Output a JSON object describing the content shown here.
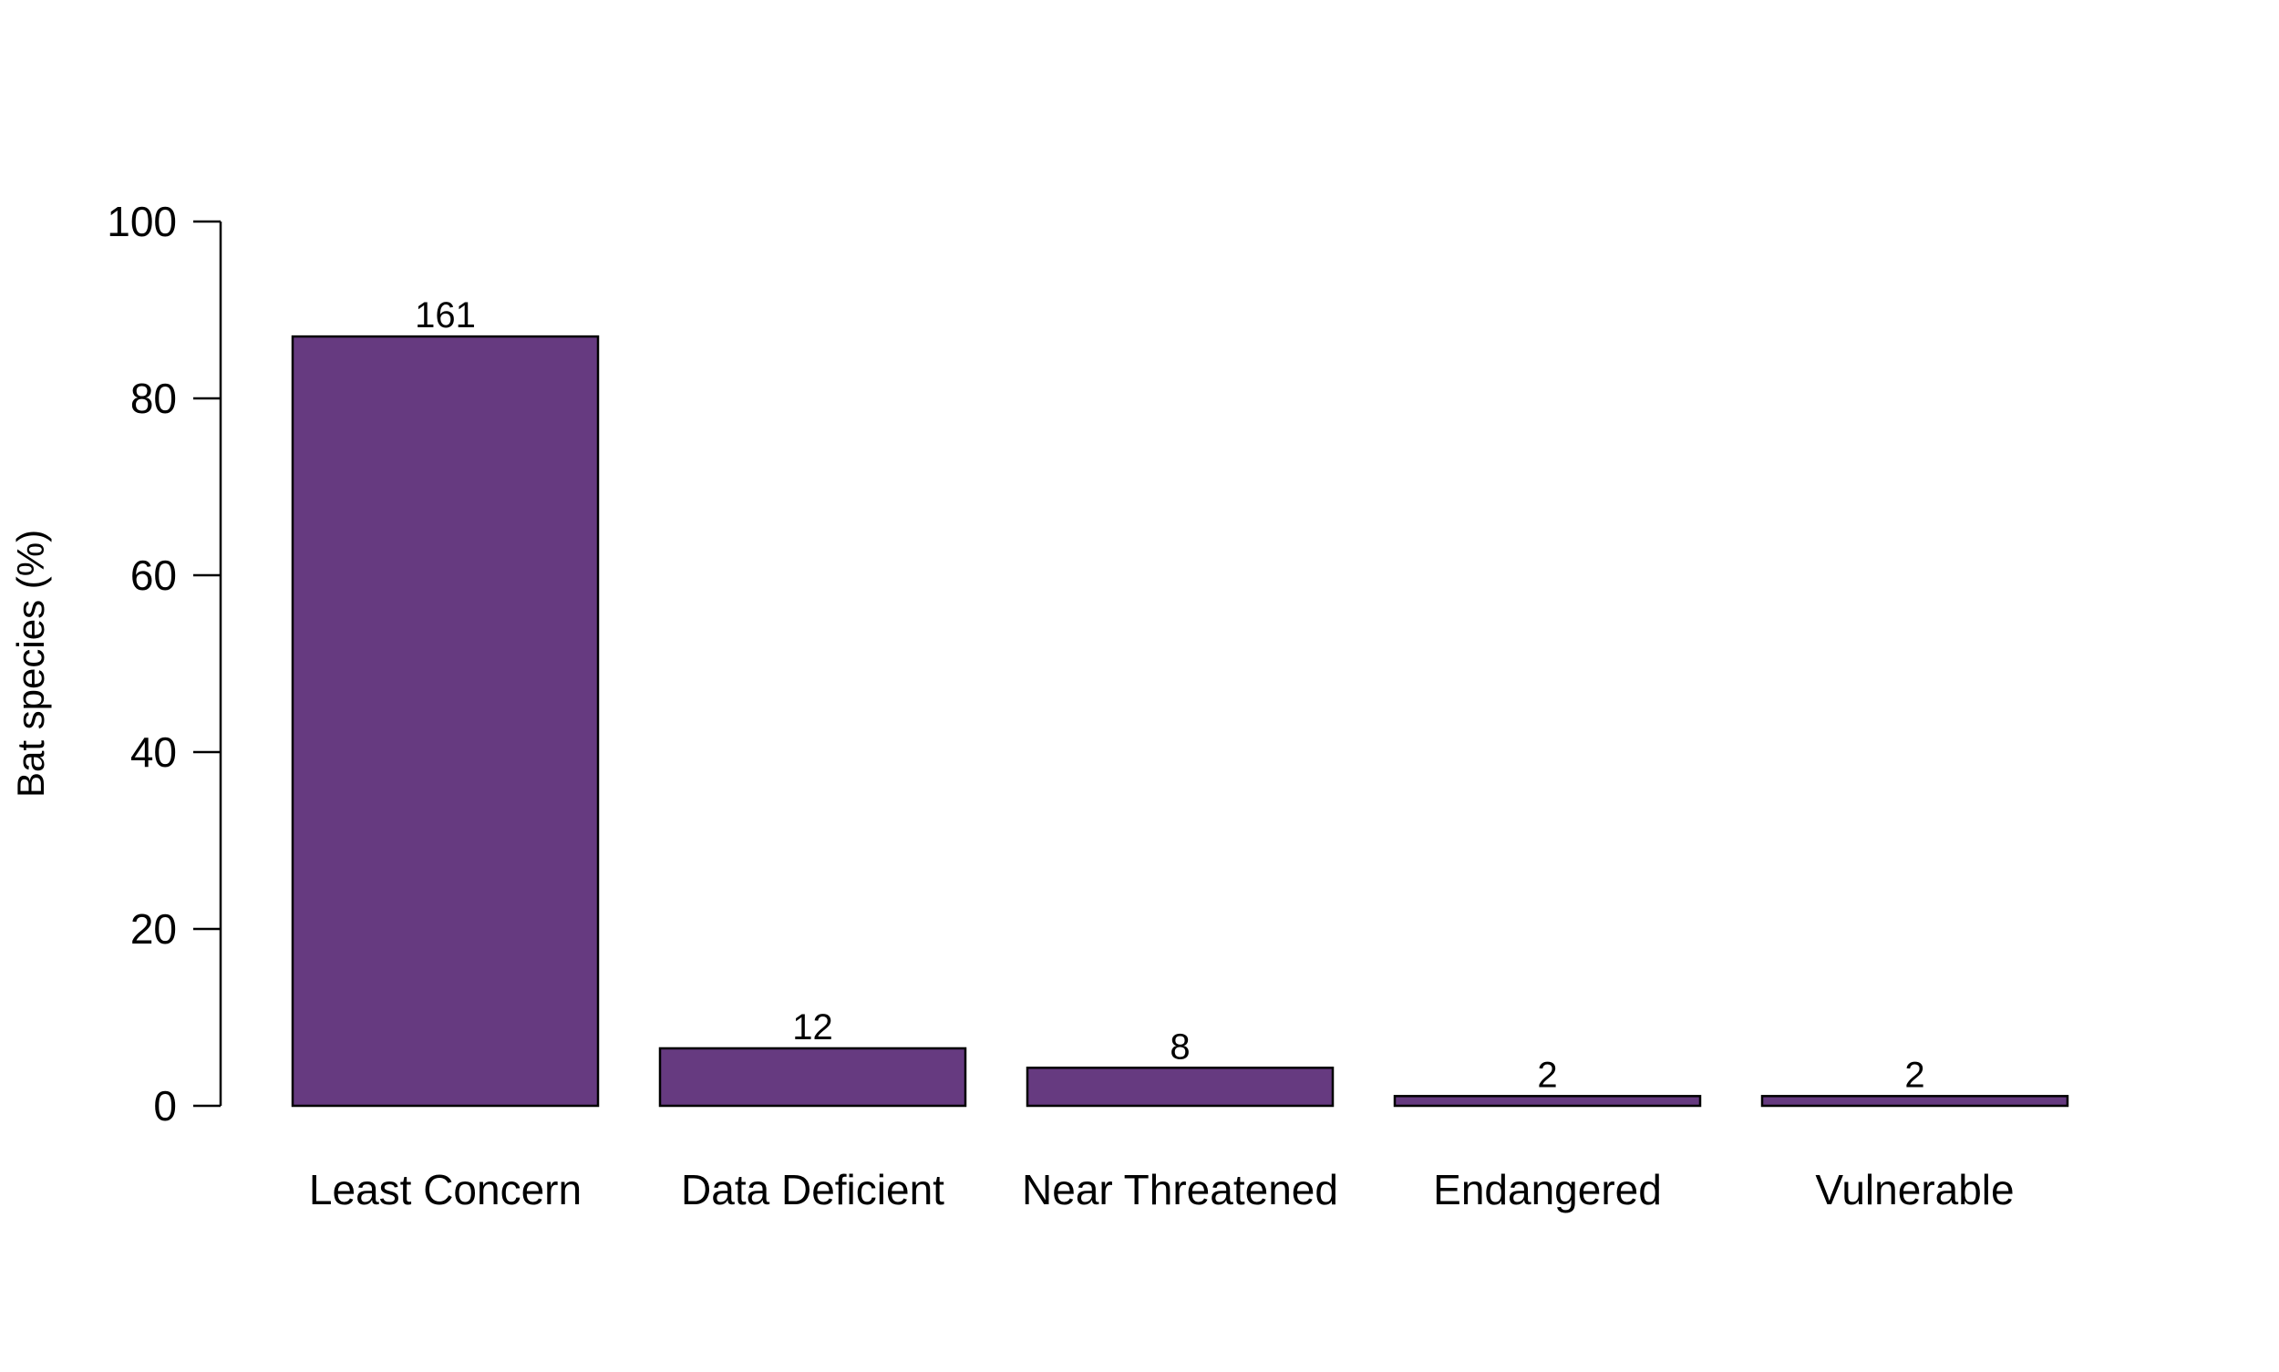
{
  "chart_data": {
    "type": "bar",
    "title": "",
    "xlabel": "",
    "ylabel": "Bat species (%)",
    "ylim": [
      0,
      100
    ],
    "yticks": [
      0,
      20,
      40,
      60,
      80,
      100
    ],
    "grid": false,
    "categories": [
      "Least Concern",
      "Data Deficient",
      "Near Threatened",
      "Endangered",
      "Vulnerable"
    ],
    "values": [
      87,
      6.5,
      4.3,
      1.1,
      1.1
    ],
    "data_labels": [
      "161",
      "12",
      "8",
      "2",
      "2"
    ],
    "colors": {
      "bar_fill": "#663a80",
      "bar_stroke": "#000000",
      "axis": "#000000",
      "background": "#ffffff"
    }
  }
}
